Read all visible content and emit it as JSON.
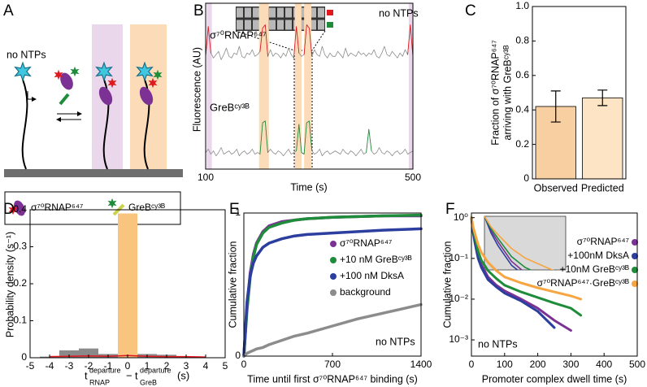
{
  "diagram": {
    "panel": "A",
    "annotation": "no NTPs",
    "legend": [
      "σ⁷⁰RNAP⁶⁴⁷",
      "GreBᶜʸ³ᴮ"
    ]
  },
  "chart_data": [
    {
      "panel": "B",
      "type": "line",
      "xlabel": "Time (s)",
      "ylabel": "Fluorescence (AU)",
      "annotation": "no NTPs",
      "x": [
        100,
        105,
        110,
        115,
        120,
        125,
        130,
        135,
        140,
        145,
        150,
        155,
        160,
        165,
        170,
        175,
        180,
        185,
        190,
        195,
        200,
        205,
        210,
        215,
        220,
        225,
        230,
        235,
        240,
        245,
        250,
        255,
        260,
        265,
        270,
        275,
        280,
        285,
        290,
        295,
        300,
        305,
        310,
        315,
        320,
        325,
        330,
        335,
        340,
        345,
        350,
        355,
        360,
        365,
        370,
        375,
        380,
        385,
        390,
        395,
        400,
        405,
        410,
        415,
        420,
        425,
        430,
        435,
        440,
        445,
        450,
        455,
        460,
        465,
        470,
        475,
        480,
        485,
        490,
        495,
        500
      ],
      "xlim": [
        100,
        500
      ],
      "xticks": [
        100,
        500
      ],
      "ylim": [
        0,
        10
      ],
      "highlights": [
        {
          "start": 102,
          "end": 112,
          "color": "#ead7eb"
        },
        {
          "start": 203,
          "end": 222,
          "color": "#fcdcb8"
        },
        {
          "start": 272,
          "end": 285,
          "color": "#fcdcb8"
        },
        {
          "start": 290,
          "end": 304,
          "color": "#fcdcb8"
        },
        {
          "start": 492,
          "end": 500,
          "color": "#ead7eb"
        }
      ],
      "series": [
        {
          "color": "#8c8c8c",
          "values": [
            6.8,
            8.6,
            7.0,
            6.7,
            6.9,
            7.1,
            6.6,
            6.9,
            7.3,
            6.8,
            6.7,
            7.0,
            6.9,
            7.4,
            6.8,
            6.7,
            7.0,
            6.9,
            7.2,
            6.8,
            6.9,
            7.1,
            8.5,
            8.7,
            6.8,
            7.2,
            6.8,
            7.0,
            6.9,
            6.7,
            7.0,
            6.8,
            7.3,
            6.9,
            6.7,
            8.6,
            7.0,
            6.8,
            6.9,
            8.7,
            8.5,
            6.8,
            7.2,
            6.9,
            6.8,
            7.4,
            6.9,
            6.7,
            7.0,
            6.8,
            6.8,
            7.1,
            6.9,
            6.7,
            7.3,
            6.8,
            7.0,
            6.9,
            6.8,
            7.1,
            6.9,
            7.0,
            6.8,
            7.0,
            6.9,
            7.2,
            6.8,
            6.7,
            7.0,
            7.4,
            6.9,
            6.8,
            7.1,
            6.9,
            6.7,
            7.0,
            6.8,
            7.2,
            6.9,
            8.7,
            6.8
          ]
        },
        {
          "name": "σ⁷⁰RNAP⁶⁴⁷",
          "color": "#e0191f",
          "values": [
            6.8,
            8.6,
            7.0,
            null,
            null,
            null,
            null,
            null,
            null,
            null,
            null,
            null,
            null,
            null,
            null,
            null,
            null,
            null,
            null,
            null,
            null,
            7.1,
            8.5,
            8.7,
            6.8,
            null,
            null,
            null,
            null,
            null,
            null,
            null,
            null,
            null,
            6.7,
            8.6,
            7.0,
            null,
            6.9,
            8.7,
            8.5,
            6.8,
            null,
            null,
            null,
            null,
            null,
            null,
            null,
            null,
            null,
            null,
            null,
            null,
            null,
            null,
            null,
            null,
            null,
            null,
            null,
            null,
            null,
            null,
            null,
            null,
            null,
            null,
            null,
            null,
            null,
            null,
            null,
            null,
            null,
            null,
            null,
            null,
            6.9,
            8.7,
            6.8
          ]
        },
        {
          "color": "#8c8c8c",
          "values": [
            1.0,
            1.2,
            0.9,
            1.1,
            0.8,
            1.0,
            1.3,
            0.9,
            1.0,
            1.1,
            0.9,
            1.0,
            1.2,
            0.8,
            1.0,
            1.1,
            0.9,
            1.0,
            1.2,
            0.9,
            1.0,
            0.9,
            2.8,
            2.9,
            1.0,
            1.2,
            1.0,
            0.9,
            1.1,
            1.0,
            0.8,
            1.0,
            1.2,
            0.9,
            1.0,
            1.1,
            2.7,
            1.0,
            0.9,
            2.8,
            2.9,
            1.1,
            0.9,
            1.0,
            1.2,
            0.8,
            1.0,
            1.1,
            0.9,
            1.0,
            1.1,
            1.0,
            0.9,
            1.2,
            1.0,
            0.9,
            1.1,
            1.0,
            0.8,
            1.0,
            1.2,
            0.9,
            1.0,
            2.4,
            1.1,
            0.9,
            1.0,
            1.3,
            1.0,
            0.9,
            1.1,
            1.0,
            0.8,
            1.0,
            1.1,
            0.9,
            1.0,
            1.2,
            0.9,
            1.0,
            1.1
          ]
        },
        {
          "name": "GreBᶜʸ³ᴮ",
          "color": "#1e8c3a",
          "values": [
            null,
            null,
            null,
            null,
            null,
            null,
            null,
            null,
            null,
            null,
            null,
            null,
            null,
            null,
            null,
            null,
            null,
            null,
            null,
            null,
            null,
            0.9,
            2.8,
            2.9,
            1.0,
            null,
            null,
            null,
            null,
            null,
            null,
            null,
            null,
            null,
            null,
            1.1,
            2.7,
            1.0,
            0.9,
            2.8,
            2.9,
            1.1,
            null,
            null,
            null,
            null,
            null,
            null,
            null,
            null,
            null,
            null,
            null,
            null,
            null,
            null,
            null,
            null,
            null,
            null,
            null,
            null,
            1.0,
            2.4,
            1.1,
            null,
            null,
            null,
            null,
            null,
            null,
            null,
            null,
            null,
            null,
            null,
            null,
            null,
            null,
            null,
            null
          ]
        }
      ]
    },
    {
      "panel": "C",
      "type": "bar",
      "ylabel": [
        "Fraction of σ⁷⁰RNAP⁶⁴⁷",
        "arriving with GreBᶜʸ³ᴮ"
      ],
      "categories": [
        "Observed",
        "Predicted"
      ],
      "values": [
        0.42,
        0.47
      ],
      "errors": [
        0.09,
        0.045
      ],
      "colors": [
        "#f8cfa0",
        "#fde4c4"
      ],
      "ylim": [
        0,
        1
      ],
      "yticks": [
        0,
        0.2,
        0.4,
        0.6,
        0.8,
        {
          "value": 1,
          "label": "1.0"
        }
      ]
    },
    {
      "panel": "D",
      "type": "histogram",
      "ylabel": "Probability density (s⁻¹)",
      "xlabel": [
        "t",
        "departure",
        "RNAP",
        "−",
        "t",
        "departure",
        "GreB",
        "(s)"
      ],
      "bins": [
        -4.5,
        -3.5,
        -2.5,
        -1.5,
        -0.5,
        0.5,
        1.5,
        2.5,
        3.5,
        4.5
      ],
      "values": [
        0.003,
        0.02,
        0.025,
        0.01,
        0.39,
        0.01,
        0.008,
        0.003,
        0.001
      ],
      "colors": [
        "#8a8a8a",
        "#8a8a8a",
        "#8a8a8a",
        "#8a8a8a",
        "#f9c47e",
        "#8a8a8a",
        "#8a8a8a",
        "#8a8a8a",
        "#8a8a8a"
      ],
      "overlay": {
        "color": "#e0191f",
        "values": [
          0.003,
          0.004,
          0.005,
          0.004,
          0.006,
          0.004,
          0.003,
          0.003,
          0.002
        ]
      },
      "xlim": [
        -5,
        5
      ],
      "xticks": [
        -5,
        -4,
        -3,
        -2,
        -1,
        0,
        1,
        2,
        3,
        4,
        5
      ],
      "ylim": [
        0,
        0.4
      ],
      "yticks": [
        0,
        0.1,
        0.2,
        0.3,
        0.4
      ]
    },
    {
      "panel": "E",
      "type": "line",
      "xlabel": "Time until first σ⁷⁰RNAP⁶⁴⁷ binding (s)",
      "ylabel": "Cumulative fraction",
      "annotation": "no NTPs",
      "x": [
        0,
        25,
        50,
        75,
        100,
        150,
        200,
        300,
        400,
        500,
        700,
        900,
        1100,
        1400
      ],
      "xlim": [
        0,
        1400
      ],
      "xticks": [
        0,
        700,
        1400
      ],
      "ylim": [
        0,
        1
      ],
      "yticks": [
        0,
        1
      ],
      "legend": "right",
      "series": [
        {
          "name": "σ⁷⁰RNAP⁶⁴⁷",
          "color": "#7b3294",
          "values": [
            0,
            0.35,
            0.58,
            0.71,
            0.79,
            0.87,
            0.91,
            0.94,
            0.95,
            0.96,
            0.97,
            0.975,
            0.98,
            0.98
          ]
        },
        {
          "name": "+10 nM GreBᶜʸ³ᴮ",
          "color": "#1e8c3a",
          "values": [
            0,
            0.32,
            0.55,
            0.69,
            0.78,
            0.86,
            0.9,
            0.93,
            0.95,
            0.96,
            0.97,
            0.975,
            0.98,
            0.985
          ]
        },
        {
          "name": "+100 nM DksA",
          "color": "#2c3e9e",
          "values": [
            0,
            0.38,
            0.56,
            0.65,
            0.7,
            0.76,
            0.79,
            0.82,
            0.84,
            0.85,
            0.86,
            0.87,
            0.88,
            0.89
          ]
        },
        {
          "name": "background",
          "color": "#8c8c8c",
          "values": [
            0,
            0.02,
            0.03,
            0.04,
            0.05,
            0.06,
            0.08,
            0.11,
            0.14,
            0.16,
            0.21,
            0.26,
            0.3,
            0.36
          ]
        }
      ]
    },
    {
      "panel": "F",
      "type": "line",
      "xlabel": "Promoter complex dwell time (s)",
      "ylabel": "Cumulative fraction",
      "annotation": "no NTPs",
      "x": [
        0,
        5,
        10,
        20,
        30,
        50,
        75,
        100,
        150,
        200,
        250,
        300,
        330
      ],
      "xlim": [
        0,
        500
      ],
      "xticks": [
        0,
        100,
        200,
        300,
        400,
        500
      ],
      "ylog": true,
      "ylim": [
        0.0004,
        1.3
      ],
      "yticks": [
        {
          "value": 1,
          "label": "10⁰"
        },
        {
          "value": 0.1,
          "label": "10⁻¹"
        },
        {
          "value": 0.01,
          "label": "10⁻²"
        },
        {
          "value": 0.001,
          "label": "10⁻³"
        }
      ],
      "legend": "right",
      "inset": {
        "xlim": [
          0,
          60
        ],
        "ylim": [
          0.08,
          1
        ]
      },
      "series": [
        {
          "name": "σ⁷⁰RNAP⁶⁴⁷",
          "color": "#7b3294",
          "values": [
            1,
            0.5,
            0.3,
            0.12,
            0.07,
            0.035,
            0.022,
            0.016,
            0.01,
            0.006,
            0.003,
            0.0017,
            null
          ]
        },
        {
          "name": "+100nM DksA",
          "color": "#2c3e9e",
          "values": [
            1,
            0.45,
            0.25,
            0.1,
            0.06,
            0.03,
            0.02,
            0.014,
            0.009,
            0.005,
            0.002,
            null,
            null
          ]
        },
        {
          "name": "+10nM GreBᶜʸ³ᴮ",
          "color": "#1e8c3a",
          "values": [
            1,
            0.55,
            0.35,
            0.15,
            0.09,
            0.05,
            0.032,
            0.022,
            0.015,
            0.011,
            0.008,
            0.006,
            0.004
          ]
        },
        {
          "name": "σ⁷⁰RNAP⁶⁴⁷·GreBᶜʸ³ᴮ",
          "color": "#f7a540",
          "values": [
            1,
            0.6,
            0.42,
            0.22,
            0.14,
            0.08,
            0.05,
            0.035,
            0.025,
            0.019,
            0.015,
            0.012,
            0.01
          ]
        }
      ]
    }
  ]
}
